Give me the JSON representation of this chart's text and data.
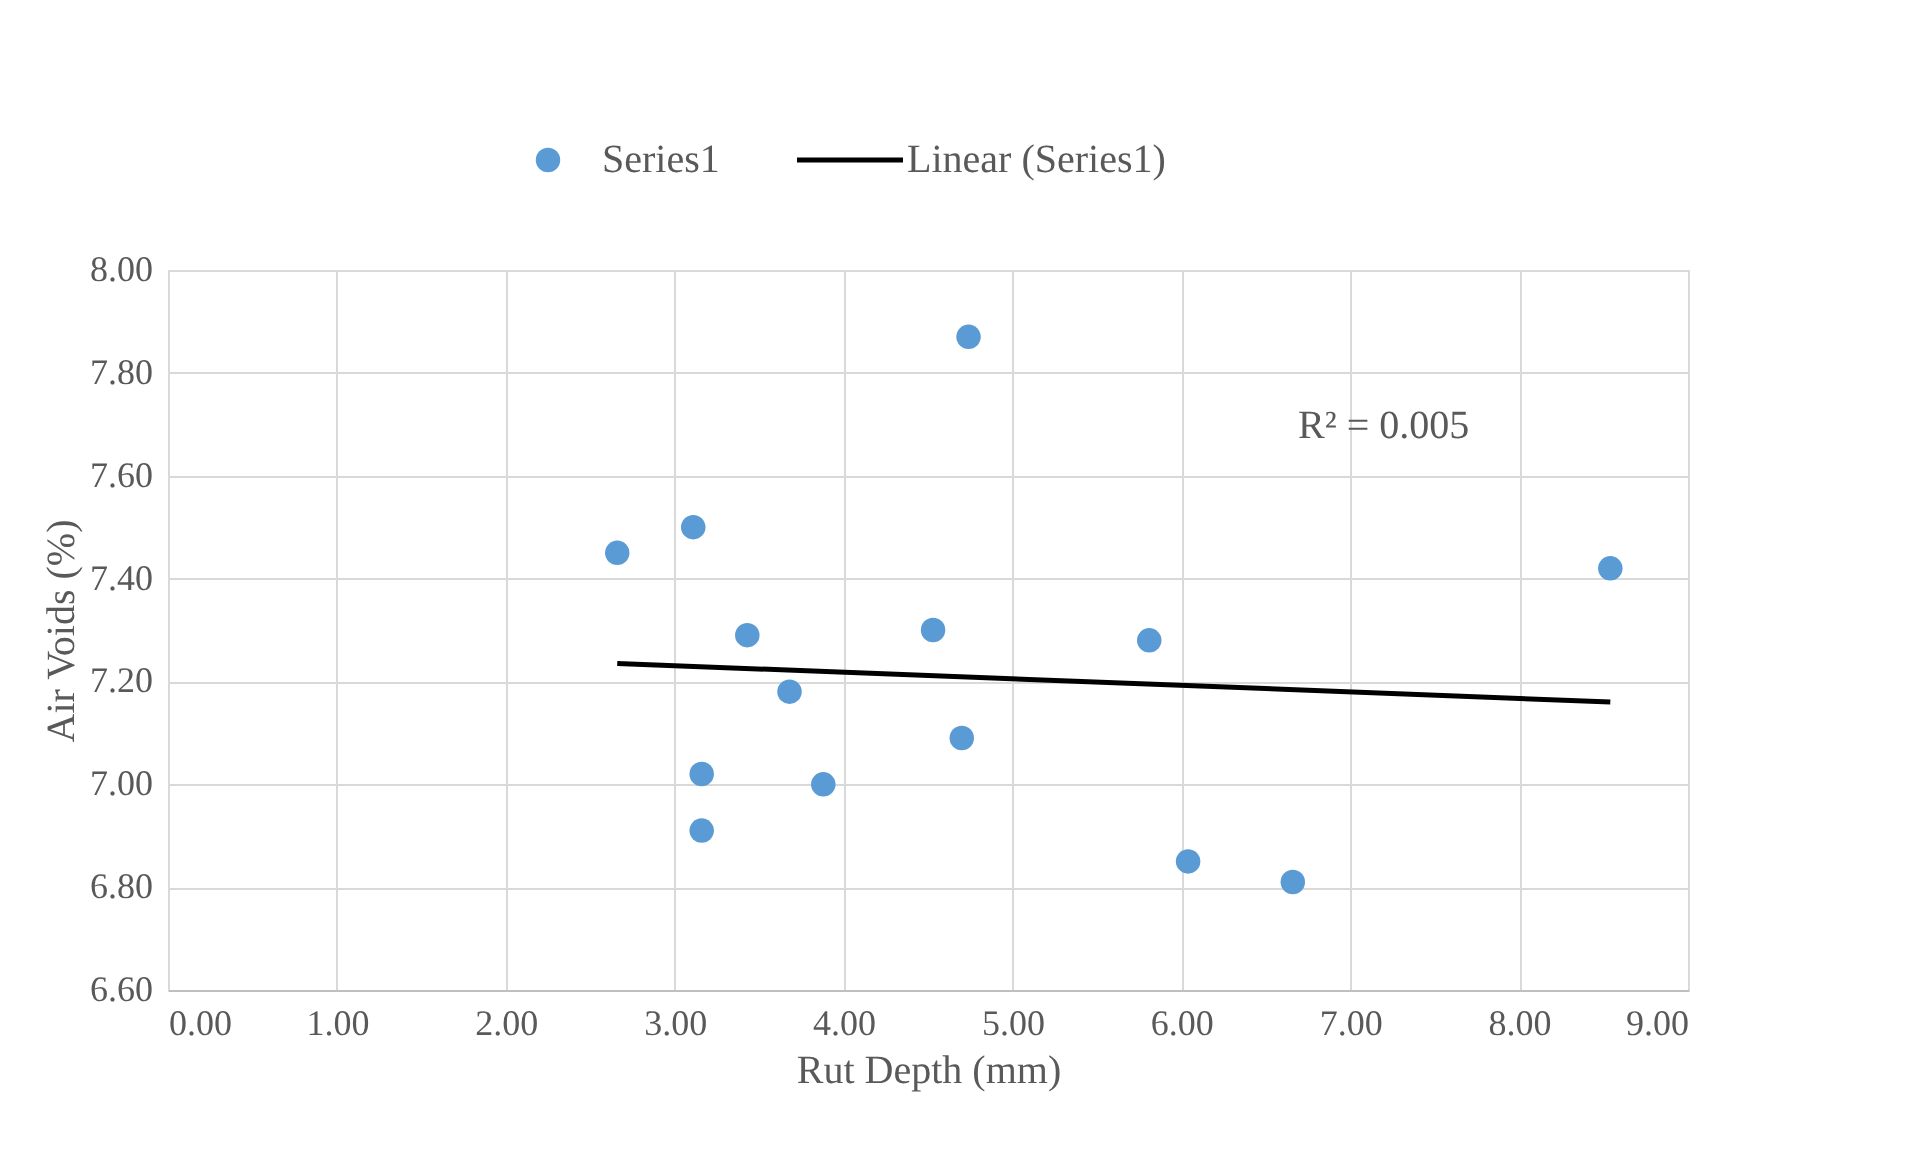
{
  "chart_data": {
    "type": "scatter",
    "xlabel": "Rut Depth (mm)",
    "ylabel": "Air Voids (%)",
    "series": [
      {
        "name": "Series1",
        "color": "#5b9bd5",
        "marker": "circle",
        "x": [
          2.66,
          3.11,
          4.74,
          3.43,
          4.53,
          5.81,
          8.54,
          3.68,
          3.16,
          4.7,
          3.88,
          3.16,
          6.04,
          6.66
        ],
        "values": [
          7.45,
          7.5,
          7.87,
          7.29,
          7.3,
          7.28,
          7.42,
          7.18,
          7.02,
          7.09,
          7.0,
          6.91,
          6.85,
          6.81
        ]
      },
      {
        "name": "Linear (Series1)",
        "type": "line",
        "color": "#000000",
        "line_style": "solid",
        "x": [
          2.66,
          8.54
        ],
        "values": [
          7.235,
          7.16
        ]
      }
    ],
    "xlim": [
      0,
      9
    ],
    "xticks": [
      {
        "value": 0,
        "label": "0.00"
      },
      {
        "value": 1,
        "label": "1.00"
      },
      {
        "value": 2,
        "label": "2.00"
      },
      {
        "value": 3,
        "label": "3.00"
      },
      {
        "value": 4,
        "label": "4.00"
      },
      {
        "value": 5,
        "label": "5.00"
      },
      {
        "value": 6,
        "label": "6.00"
      },
      {
        "value": 7,
        "label": "7.00"
      },
      {
        "value": 8,
        "label": "8.00"
      },
      {
        "value": 9,
        "label": "9.00"
      }
    ],
    "ylim": [
      6.6,
      8.0
    ],
    "yticks": [
      {
        "value": 6.6,
        "label": "6.60"
      },
      {
        "value": 6.8,
        "label": "6.80"
      },
      {
        "value": 7.0,
        "label": "7.00"
      },
      {
        "value": 7.2,
        "label": "7.20"
      },
      {
        "value": 7.4,
        "label": "7.40"
      },
      {
        "value": 7.6,
        "label": "7.60"
      },
      {
        "value": 7.8,
        "label": "7.80"
      },
      {
        "value": 8.0,
        "label": "8.00"
      }
    ],
    "annotations": [
      "R² = 0.005"
    ],
    "grid": true,
    "legend": "top"
  }
}
